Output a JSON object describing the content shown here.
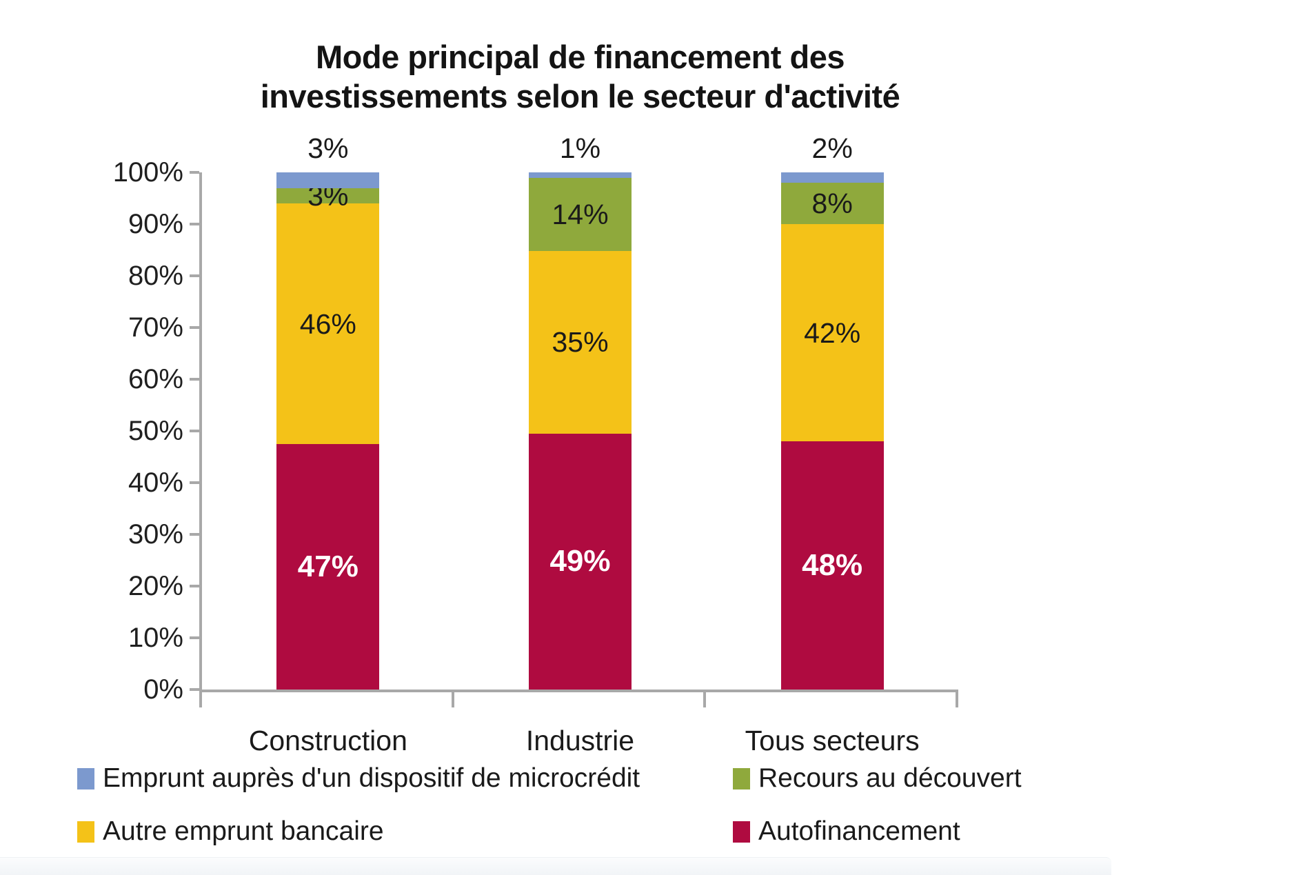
{
  "title": {
    "line1": "Mode principal de financement des",
    "line2": "investissements selon le secteur d'activité"
  },
  "chart_data": {
    "type": "bar",
    "variant": "stacked-100-percent-column",
    "title": "Mode principal de financement des investissements selon le secteur d'activité",
    "categories": [
      "Construction",
      "Industrie",
      "Tous secteurs"
    ],
    "series": [
      {
        "name": "Autofinancement",
        "color": "#AF0B40",
        "values": [
          47,
          49,
          48
        ],
        "label_style": "white-bold",
        "label_position": "inside"
      },
      {
        "name": "Autre emprunt bancaire",
        "color": "#F4C218",
        "values": [
          46,
          35,
          42
        ],
        "label_style": "black",
        "label_position": "inside"
      },
      {
        "name": "Recours au découvert",
        "color": "#8FA93C",
        "values": [
          3,
          14,
          8
        ],
        "label_style": "black",
        "label_position": "inside"
      },
      {
        "name": "Emprunt auprès d'un dispositif de microcrédit",
        "color": "#7C99CE",
        "values": [
          3,
          1,
          2
        ],
        "label_style": "black",
        "label_position": "above"
      }
    ],
    "value_suffix": "%",
    "y_axis": {
      "min": 0,
      "max": 100,
      "tick_labels": [
        "0%",
        "10%",
        "20%",
        "30%",
        "40%",
        "50%",
        "60%",
        "70%",
        "80%",
        "90%",
        "100%"
      ]
    },
    "x_axis": {
      "labels": [
        "Construction",
        "Industrie",
        "Tous secteurs"
      ]
    },
    "grid": false,
    "axis_color": "#a8a8a8",
    "legend": {
      "position": "bottom",
      "rows": [
        [
          {
            "label": "Emprunt auprès d'un dispositif de microcrédit",
            "color": "#7C99CE"
          },
          {
            "label": "Recours au découvert",
            "color": "#8FA93C"
          }
        ],
        [
          {
            "label": "Autre emprunt bancaire",
            "color": "#F4C218"
          },
          {
            "label": "Autofinancement",
            "color": "#AF0B40"
          }
        ]
      ]
    }
  }
}
